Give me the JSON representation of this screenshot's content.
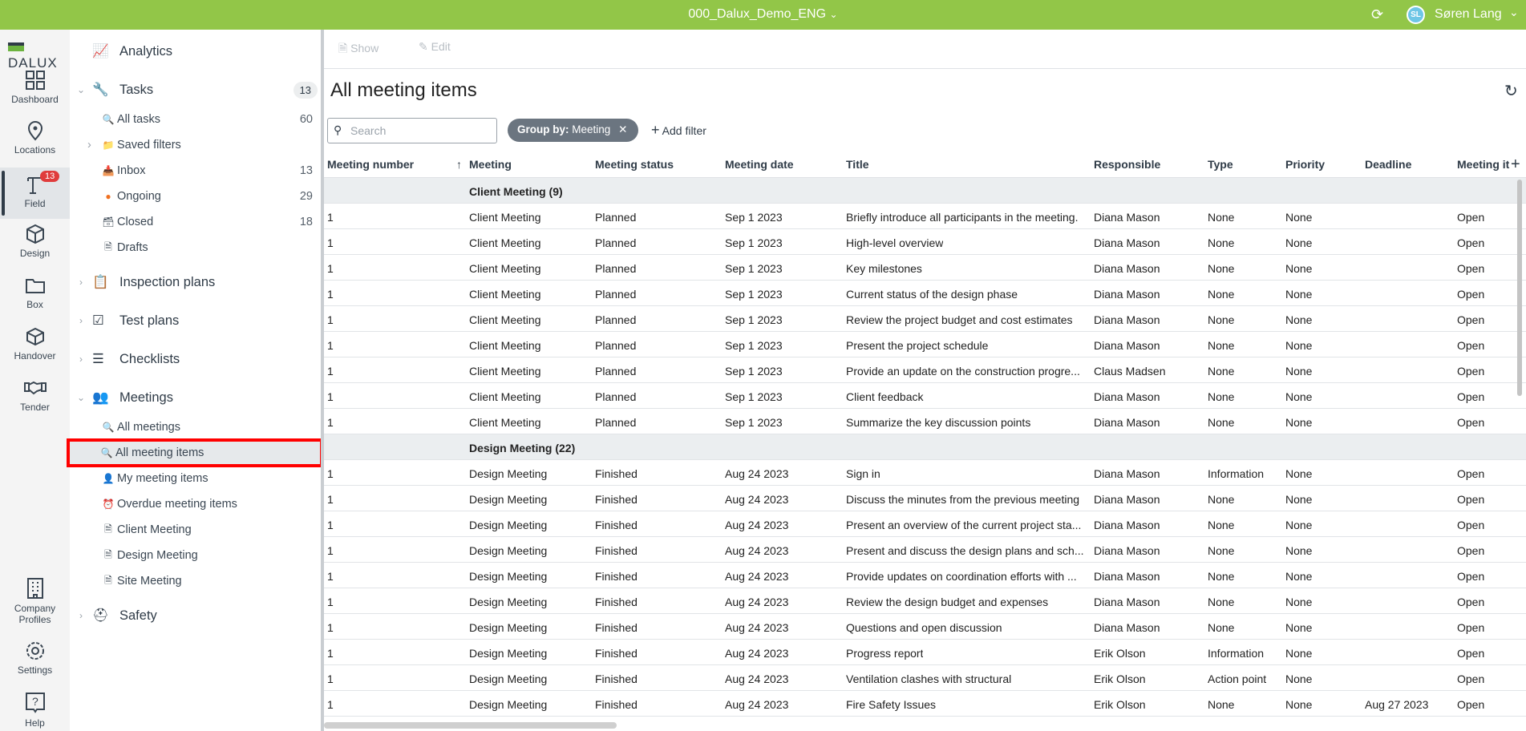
{
  "topbar": {
    "project": "000_Dalux_Demo_ENG",
    "user_initials": "SL",
    "user_name": "Søren Lang"
  },
  "rail": {
    "logo": "DALUX",
    "items": [
      {
        "label": "Dashboard",
        "icon": "grid-icon"
      },
      {
        "label": "Locations",
        "icon": "pin-icon"
      },
      {
        "label": "Field",
        "icon": "crane-icon",
        "badge": "13"
      },
      {
        "label": "Design",
        "icon": "cube-icon"
      },
      {
        "label": "Box",
        "icon": "folder-icon"
      },
      {
        "label": "Handover",
        "icon": "box-icon"
      },
      {
        "label": "Tender",
        "icon": "handshake-icon"
      }
    ],
    "bottom": [
      {
        "label": "Company",
        "label2": "Profiles"
      },
      {
        "label": "Settings"
      },
      {
        "label": "Help"
      }
    ]
  },
  "nav": {
    "analytics": "Analytics",
    "tasks": {
      "label": "Tasks",
      "badge": "13",
      "items": [
        {
          "label": "All tasks",
          "count": "60"
        },
        {
          "label": "Saved filters",
          "count": ""
        },
        {
          "label": "Inbox",
          "count": "13"
        },
        {
          "label": "Ongoing",
          "count": "29"
        },
        {
          "label": "Closed",
          "count": "18"
        },
        {
          "label": "Drafts",
          "count": ""
        }
      ]
    },
    "inspection": "Inspection plans",
    "test": "Test plans",
    "checklists": "Checklists",
    "meetings": {
      "label": "Meetings",
      "items": [
        "All meetings",
        "All meeting items",
        "My meeting items",
        "Overdue meeting items",
        "Client Meeting",
        "Design Meeting",
        "Site Meeting"
      ]
    },
    "safety": "Safety"
  },
  "toolbar": {
    "show": "Show",
    "edit": "Edit"
  },
  "page_title": "All meeting items",
  "search_placeholder": "Search",
  "chip": {
    "key": "Group by:",
    "value": "Meeting"
  },
  "add_filter": "Add filter",
  "columns": [
    "Meeting number",
    "Meeting",
    "Meeting status",
    "Meeting date",
    "Title",
    "Responsible",
    "Type",
    "Priority",
    "Deadline",
    "Meeting it"
  ],
  "groups": [
    {
      "label": "Client Meeting (9)",
      "rows": [
        [
          "1",
          "Client Meeting",
          "Planned",
          "Sep 1 2023",
          "Briefly introduce all participants in the meeting.",
          "Diana Mason",
          "None",
          "None",
          "",
          "Open"
        ],
        [
          "1",
          "Client Meeting",
          "Planned",
          "Sep 1 2023",
          "High-level overview",
          "Diana Mason",
          "None",
          "None",
          "",
          "Open"
        ],
        [
          "1",
          "Client Meeting",
          "Planned",
          "Sep 1 2023",
          "Key milestones",
          "Diana Mason",
          "None",
          "None",
          "",
          "Open"
        ],
        [
          "1",
          "Client Meeting",
          "Planned",
          "Sep 1 2023",
          "Current status of the design phase",
          "Diana Mason",
          "None",
          "None",
          "",
          "Open"
        ],
        [
          "1",
          "Client Meeting",
          "Planned",
          "Sep 1 2023",
          "Review the project budget and cost estimates",
          "Diana Mason",
          "None",
          "None",
          "",
          "Open"
        ],
        [
          "1",
          "Client Meeting",
          "Planned",
          "Sep 1 2023",
          "Present the project schedule",
          "Diana Mason",
          "None",
          "None",
          "",
          "Open"
        ],
        [
          "1",
          "Client Meeting",
          "Planned",
          "Sep 1 2023",
          "Provide an update on the construction progre...",
          "Claus Madsen",
          "None",
          "None",
          "",
          "Open"
        ],
        [
          "1",
          "Client Meeting",
          "Planned",
          "Sep 1 2023",
          "Client feedback",
          "Diana Mason",
          "None",
          "None",
          "",
          "Open"
        ],
        [
          "1",
          "Client Meeting",
          "Planned",
          "Sep 1 2023",
          "Summarize the key discussion points",
          "Diana Mason",
          "None",
          "None",
          "",
          "Open"
        ]
      ]
    },
    {
      "label": "Design Meeting (22)",
      "rows": [
        [
          "1",
          "Design Meeting",
          "Finished",
          "Aug 24 2023",
          "Sign in",
          "Diana Mason",
          "Information",
          "None",
          "",
          "Open"
        ],
        [
          "1",
          "Design Meeting",
          "Finished",
          "Aug 24 2023",
          "Discuss the minutes from the previous meeting",
          "Diana Mason",
          "None",
          "None",
          "",
          "Open"
        ],
        [
          "1",
          "Design Meeting",
          "Finished",
          "Aug 24 2023",
          "Present an overview of the current project sta...",
          "Diana Mason",
          "None",
          "None",
          "",
          "Open"
        ],
        [
          "1",
          "Design Meeting",
          "Finished",
          "Aug 24 2023",
          "Present and discuss the design plans and sch...",
          "Diana Mason",
          "None",
          "None",
          "",
          "Open"
        ],
        [
          "1",
          "Design Meeting",
          "Finished",
          "Aug 24 2023",
          "Provide updates on coordination efforts with ...",
          "Diana Mason",
          "None",
          "None",
          "",
          "Open"
        ],
        [
          "1",
          "Design Meeting",
          "Finished",
          "Aug 24 2023",
          "Review the design budget and expenses",
          "Diana Mason",
          "None",
          "None",
          "",
          "Open"
        ],
        [
          "1",
          "Design Meeting",
          "Finished",
          "Aug 24 2023",
          "Questions and open discussion",
          "Diana Mason",
          "None",
          "None",
          "",
          "Open"
        ],
        [
          "1",
          "Design Meeting",
          "Finished",
          "Aug 24 2023",
          "Progress report",
          "Erik Olson",
          "Information",
          "None",
          "",
          "Open"
        ],
        [
          "1",
          "Design Meeting",
          "Finished",
          "Aug 24 2023",
          "Ventilation clashes with structural",
          "Erik Olson",
          "Action point",
          "None",
          "",
          "Open"
        ],
        [
          "1",
          "Design Meeting",
          "Finished",
          "Aug 24 2023",
          "Fire Safety Issues",
          "Erik Olson",
          "None",
          "None",
          "Aug 27 2023",
          "Open"
        ]
      ]
    }
  ],
  "colors": {
    "brand": "#92c648",
    "badge": "#e03c3c",
    "chip": "#6b7580",
    "highlight": "#ff0000"
  }
}
